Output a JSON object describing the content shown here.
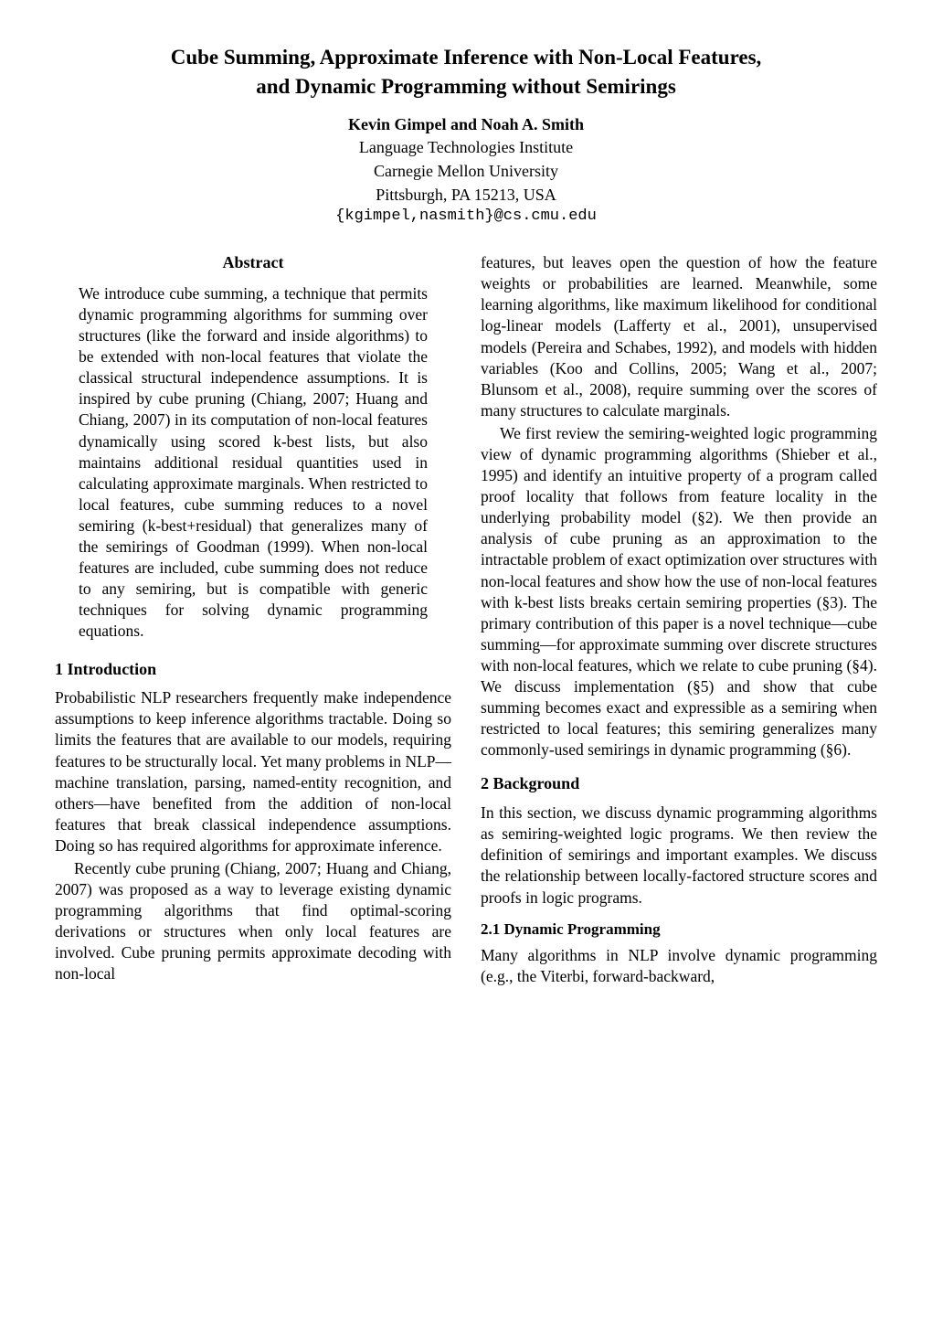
{
  "title_line1": "Cube Summing, Approximate Inference with Non-Local Features,",
  "title_line2": "and Dynamic Programming without Semirings",
  "authors": {
    "names_html": "Kevin Gimpel  and  Noah A. Smith",
    "affil1": "Language Technologies Institute",
    "affil2": "Carnegie Mellon University",
    "affil3": "Pittsburgh, PA 15213, USA",
    "email": "{kgimpel,nasmith}@cs.cmu.edu"
  },
  "abstract": {
    "heading": "Abstract",
    "body": "We introduce cube summing, a technique that permits dynamic programming algorithms for summing over structures (like the forward and inside algorithms) to be extended with non-local features that violate the classical structural independence assumptions. It is inspired by cube pruning (Chiang, 2007; Huang and Chiang, 2007) in its computation of non-local features dynamically using scored k-best lists, but also maintains additional residual quantities used in calculating approximate marginals. When restricted to local features, cube summing reduces to a novel semiring (k-best+residual) that generalizes many of the semirings of Goodman (1999). When non-local features are included, cube summing does not reduce to any semiring, but is compatible with generic techniques for solving dynamic programming equations."
  },
  "sections": {
    "s1": {
      "head": "1   Introduction",
      "p1": "Probabilistic NLP researchers frequently make independence assumptions to keep inference algorithms tractable. Doing so limits the features that are available to our models, requiring features to be structurally local. Yet many problems in NLP—machine translation, parsing, named-entity recognition, and others—have benefited from the addition of non-local features that break classical independence assumptions. Doing so has required algorithms for approximate inference.",
      "p2": "Recently cube pruning (Chiang, 2007; Huang and Chiang, 2007) was proposed as a way to leverage existing dynamic programming algorithms that find optimal-scoring derivations or structures when only local features are involved. Cube pruning permits approximate decoding with non-local"
    },
    "right": {
      "p1": "features, but leaves open the question of how the feature weights or probabilities are learned. Meanwhile, some learning algorithms, like maximum likelihood for conditional log-linear models (Lafferty et al., 2001), unsupervised models (Pereira and Schabes, 1992), and models with hidden variables (Koo and Collins, 2005; Wang et al., 2007; Blunsom et al., 2008), require summing over the scores of many structures to calculate marginals.",
      "p2": "We first review the semiring-weighted logic programming view of dynamic programming algorithms (Shieber et al., 1995) and identify an intuitive property of a program called proof locality that follows from feature locality in the underlying probability model (§2). We then provide an analysis of cube pruning as an approximation to the intractable problem of exact optimization over structures with non-local features and show how the use of non-local features with k-best lists breaks certain semiring properties (§3). The primary contribution of this paper is a novel technique—cube summing—for approximate summing over discrete structures with non-local features, which we relate to cube pruning (§4). We discuss implementation (§5) and show that cube summing becomes exact and expressible as a semiring when restricted to local features; this semiring generalizes many commonly-used semirings in dynamic programming (§6)."
    },
    "s2": {
      "head": "2   Background",
      "p1": "In this section, we discuss dynamic programming algorithms as semiring-weighted logic programs. We then review the definition of semirings and important examples. We discuss the relationship between locally-factored structure scores and proofs in logic programs."
    },
    "s21": {
      "head": "2.1   Dynamic Programming",
      "p1": "Many algorithms in NLP involve dynamic programming (e.g., the Viterbi, forward-backward,"
    }
  }
}
